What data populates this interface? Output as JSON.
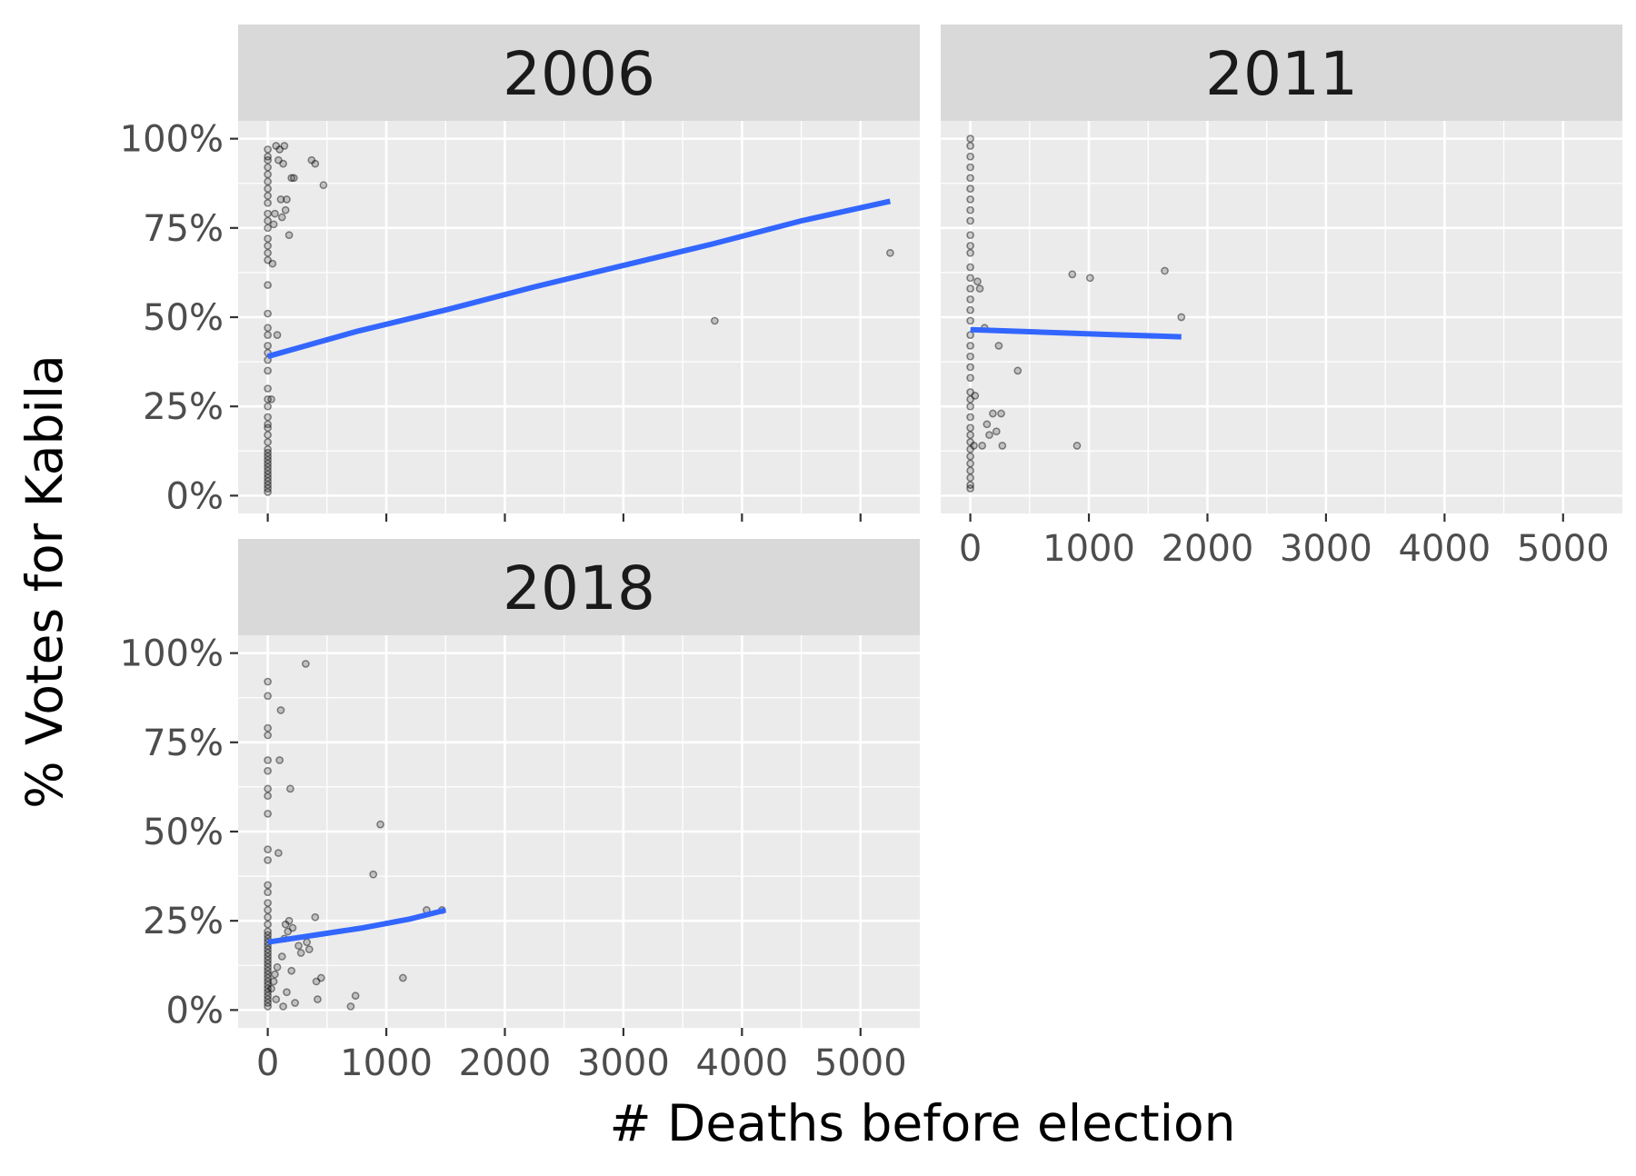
{
  "chart_data": {
    "type": "scatter",
    "facet_by": "year",
    "xlabel": "# Deaths before election",
    "ylabel": "% Votes for Kabila",
    "xlim": [
      -250,
      5500
    ],
    "ylim": [
      -0.05,
      1.05
    ],
    "x_ticks": [
      0,
      1000,
      2000,
      3000,
      4000,
      5000
    ],
    "x_tick_labels": [
      "0",
      "1000",
      "2000",
      "3000",
      "4000",
      "5000"
    ],
    "y_ticks": [
      0,
      0.25,
      0.5,
      0.75,
      1.0
    ],
    "y_tick_labels": [
      "0%",
      "25%",
      "50%",
      "75%",
      "100%"
    ],
    "grid": true,
    "colors": {
      "points": "#000000",
      "fit_line": "#3366ff",
      "panel": "#ebebeb",
      "strip": "#d9d9d9"
    },
    "panels": [
      {
        "facet": "2006",
        "fit_line": [
          [
            0,
            0.39
          ],
          [
            750,
            0.46
          ],
          [
            1500,
            0.52
          ],
          [
            2250,
            0.585
          ],
          [
            3000,
            0.645
          ],
          [
            3750,
            0.705
          ],
          [
            4500,
            0.77
          ],
          [
            5250,
            0.825
          ]
        ],
        "points": [
          [
            0,
            0.01
          ],
          [
            0,
            0.02
          ],
          [
            0,
            0.03
          ],
          [
            0,
            0.04
          ],
          [
            0,
            0.05
          ],
          [
            0,
            0.06
          ],
          [
            0,
            0.07
          ],
          [
            0,
            0.08
          ],
          [
            0,
            0.09
          ],
          [
            0,
            0.1
          ],
          [
            0,
            0.11
          ],
          [
            0,
            0.12
          ],
          [
            0,
            0.13
          ],
          [
            0,
            0.15
          ],
          [
            0,
            0.17
          ],
          [
            0,
            0.19
          ],
          [
            0,
            0.2
          ],
          [
            0,
            0.22
          ],
          [
            0,
            0.25
          ],
          [
            0,
            0.27
          ],
          [
            0,
            0.3
          ],
          [
            0,
            0.35
          ],
          [
            0,
            0.38
          ],
          [
            0,
            0.4
          ],
          [
            0,
            0.42
          ],
          [
            0,
            0.45
          ],
          [
            0,
            0.47
          ],
          [
            0,
            0.51
          ],
          [
            0,
            0.59
          ],
          [
            0,
            0.66
          ],
          [
            0,
            0.68
          ],
          [
            0,
            0.7
          ],
          [
            0,
            0.72
          ],
          [
            0,
            0.75
          ],
          [
            0,
            0.77
          ],
          [
            0,
            0.79
          ],
          [
            0,
            0.82
          ],
          [
            0,
            0.84
          ],
          [
            0,
            0.86
          ],
          [
            0,
            0.88
          ],
          [
            0,
            0.9
          ],
          [
            0,
            0.92
          ],
          [
            0,
            0.94
          ],
          [
            0,
            0.95
          ],
          [
            0,
            0.97
          ],
          [
            30,
            0.27
          ],
          [
            40,
            0.65
          ],
          [
            50,
            0.76
          ],
          [
            60,
            0.79
          ],
          [
            70,
            0.98
          ],
          [
            80,
            0.45
          ],
          [
            90,
            0.94
          ],
          [
            100,
            0.97
          ],
          [
            110,
            0.83
          ],
          [
            120,
            0.78
          ],
          [
            130,
            0.93
          ],
          [
            140,
            0.98
          ],
          [
            150,
            0.8
          ],
          [
            160,
            0.83
          ],
          [
            180,
            0.73
          ],
          [
            200,
            0.89
          ],
          [
            220,
            0.89
          ],
          [
            370,
            0.94
          ],
          [
            400,
            0.93
          ],
          [
            470,
            0.87
          ],
          [
            3770,
            0.49
          ],
          [
            5250,
            0.68
          ]
        ]
      },
      {
        "facet": "2011",
        "fit_line": [
          [
            0,
            0.465
          ],
          [
            600,
            0.458
          ],
          [
            1200,
            0.451
          ],
          [
            1780,
            0.445
          ]
        ],
        "points": [
          [
            0,
            0.02
          ],
          [
            0,
            0.03
          ],
          [
            0,
            0.05
          ],
          [
            0,
            0.07
          ],
          [
            0,
            0.09
          ],
          [
            0,
            0.11
          ],
          [
            0,
            0.13
          ],
          [
            0,
            0.15
          ],
          [
            0,
            0.17
          ],
          [
            0,
            0.19
          ],
          [
            0,
            0.22
          ],
          [
            0,
            0.25
          ],
          [
            0,
            0.27
          ],
          [
            0,
            0.29
          ],
          [
            0,
            0.33
          ],
          [
            0,
            0.36
          ],
          [
            0,
            0.39
          ],
          [
            0,
            0.42
          ],
          [
            0,
            0.45
          ],
          [
            0,
            0.49
          ],
          [
            0,
            0.52
          ],
          [
            0,
            0.55
          ],
          [
            0,
            0.58
          ],
          [
            0,
            0.61
          ],
          [
            0,
            0.64
          ],
          [
            0,
            0.68
          ],
          [
            0,
            0.7
          ],
          [
            0,
            0.73
          ],
          [
            0,
            0.77
          ],
          [
            0,
            0.8
          ],
          [
            0,
            0.83
          ],
          [
            0,
            0.86
          ],
          [
            0,
            0.89
          ],
          [
            0,
            0.92
          ],
          [
            0,
            0.95
          ],
          [
            0,
            0.98
          ],
          [
            0,
            1.0
          ],
          [
            30,
            0.14
          ],
          [
            40,
            0.28
          ],
          [
            60,
            0.6
          ],
          [
            80,
            0.58
          ],
          [
            100,
            0.14
          ],
          [
            120,
            0.47
          ],
          [
            140,
            0.2
          ],
          [
            160,
            0.17
          ],
          [
            190,
            0.23
          ],
          [
            220,
            0.18
          ],
          [
            240,
            0.42
          ],
          [
            260,
            0.23
          ],
          [
            270,
            0.14
          ],
          [
            400,
            0.35
          ],
          [
            860,
            0.62
          ],
          [
            900,
            0.14
          ],
          [
            1010,
            0.61
          ],
          [
            1640,
            0.63
          ],
          [
            1780,
            0.5
          ]
        ]
      },
      {
        "facet": "2018",
        "fit_line": [
          [
            0,
            0.19
          ],
          [
            400,
            0.21
          ],
          [
            800,
            0.23
          ],
          [
            1200,
            0.255
          ],
          [
            1500,
            0.28
          ]
        ],
        "points": [
          [
            0,
            0.01
          ],
          [
            0,
            0.02
          ],
          [
            0,
            0.03
          ],
          [
            0,
            0.04
          ],
          [
            0,
            0.05
          ],
          [
            0,
            0.06
          ],
          [
            0,
            0.07
          ],
          [
            0,
            0.08
          ],
          [
            0,
            0.09
          ],
          [
            0,
            0.1
          ],
          [
            0,
            0.11
          ],
          [
            0,
            0.12
          ],
          [
            0,
            0.13
          ],
          [
            0,
            0.14
          ],
          [
            0,
            0.15
          ],
          [
            0,
            0.16
          ],
          [
            0,
            0.17
          ],
          [
            0,
            0.18
          ],
          [
            0,
            0.19
          ],
          [
            0,
            0.2
          ],
          [
            0,
            0.21
          ],
          [
            0,
            0.22
          ],
          [
            0,
            0.24
          ],
          [
            0,
            0.26
          ],
          [
            0,
            0.28
          ],
          [
            0,
            0.3
          ],
          [
            0,
            0.33
          ],
          [
            0,
            0.35
          ],
          [
            0,
            0.42
          ],
          [
            0,
            0.45
          ],
          [
            0,
            0.55
          ],
          [
            0,
            0.6
          ],
          [
            0,
            0.62
          ],
          [
            0,
            0.67
          ],
          [
            0,
            0.7
          ],
          [
            0,
            0.77
          ],
          [
            0,
            0.79
          ],
          [
            0,
            0.88
          ],
          [
            0,
            0.92
          ],
          [
            30,
            0.06
          ],
          [
            50,
            0.08
          ],
          [
            60,
            0.1
          ],
          [
            70,
            0.03
          ],
          [
            80,
            0.12
          ],
          [
            90,
            0.44
          ],
          [
            100,
            0.7
          ],
          [
            110,
            0.84
          ],
          [
            120,
            0.15
          ],
          [
            130,
            0.01
          ],
          [
            140,
            0.2
          ],
          [
            150,
            0.24
          ],
          [
            160,
            0.05
          ],
          [
            170,
            0.22
          ],
          [
            180,
            0.25
          ],
          [
            190,
            0.62
          ],
          [
            200,
            0.11
          ],
          [
            210,
            0.23
          ],
          [
            230,
            0.02
          ],
          [
            260,
            0.18
          ],
          [
            280,
            0.16
          ],
          [
            320,
            0.97
          ],
          [
            330,
            0.19
          ],
          [
            350,
            0.17
          ],
          [
            400,
            0.26
          ],
          [
            410,
            0.08
          ],
          [
            420,
            0.03
          ],
          [
            450,
            0.09
          ],
          [
            700,
            0.01
          ],
          [
            740,
            0.04
          ],
          [
            890,
            0.38
          ],
          [
            950,
            0.52
          ],
          [
            1140,
            0.09
          ],
          [
            1340,
            0.28
          ],
          [
            1470,
            0.28
          ]
        ]
      }
    ]
  }
}
